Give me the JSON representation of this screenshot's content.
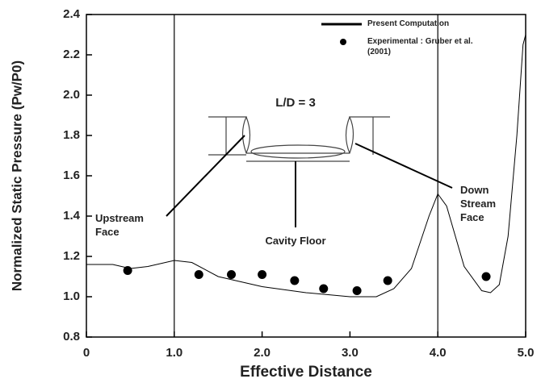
{
  "chart_data": {
    "type": "line",
    "xlabel": "Effective Distance",
    "ylabel": "Normalized Static Pressure (Pw/P0)",
    "xlim": [
      0,
      5
    ],
    "ylim": [
      0.8,
      2.4
    ],
    "xticks": [
      0,
      {
        "value": 1,
        "label": "1.0"
      },
      {
        "value": 2,
        "label": "2.0"
      },
      {
        "value": 3,
        "label": "3.0"
      },
      {
        "value": 4,
        "label": "4.0"
      },
      {
        "value": 5,
        "label": "5.0"
      }
    ],
    "yticks": [
      0.8,
      {
        "value": 1,
        "label": "1.0"
      },
      1.2,
      1.4,
      1.6,
      1.8,
      {
        "value": 2,
        "label": "2.0"
      },
      2.2,
      2.4
    ],
    "vlines": [
      1,
      4
    ],
    "series": [
      {
        "name": "Present Computation",
        "style": "line",
        "color": "#000000",
        "x": [
          0,
          0.3,
          0.5,
          0.7,
          1.0,
          1.2,
          1.5,
          2.0,
          2.5,
          3.0,
          3.3,
          3.5,
          3.7,
          3.9,
          4.0,
          4.1,
          4.3,
          4.5,
          4.6,
          4.7,
          4.8,
          4.9,
          4.97,
          5.0
        ],
        "values": [
          1.16,
          1.16,
          1.14,
          1.15,
          1.18,
          1.17,
          1.1,
          1.05,
          1.02,
          1.0,
          1.0,
          1.04,
          1.14,
          1.4,
          1.51,
          1.45,
          1.15,
          1.03,
          1.02,
          1.06,
          1.3,
          1.8,
          2.25,
          2.3
        ]
      },
      {
        "name": "Experimental : Gruber et al. (2001)",
        "style": "points",
        "color": "#000000",
        "x": [
          0.47,
          1.28,
          1.65,
          2.0,
          2.37,
          2.7,
          3.08,
          3.43,
          4.55
        ],
        "values": [
          1.13,
          1.11,
          1.11,
          1.11,
          1.08,
          1.04,
          1.03,
          1.08,
          1.1
        ]
      }
    ],
    "annotations": [
      "L/D = 3",
      "Upstream Face",
      "Cavity Floor",
      "Down Stream Face"
    ]
  }
}
